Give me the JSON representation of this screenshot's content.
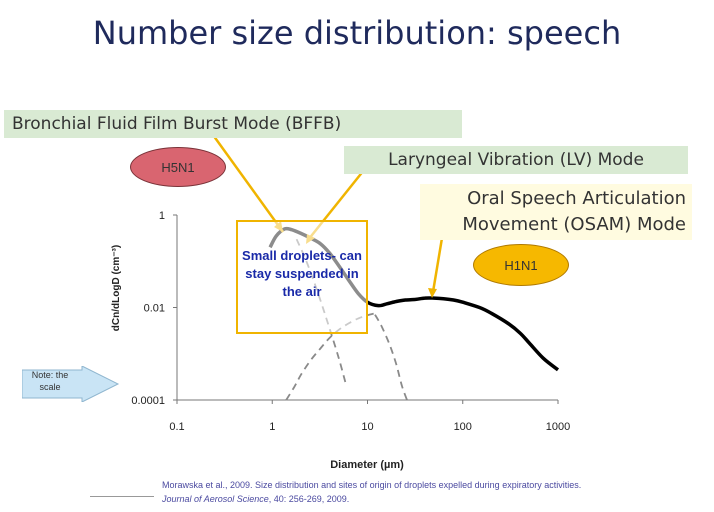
{
  "slide": {
    "title": "Number size distribution: speech"
  },
  "annotations": {
    "bffb": "Bronchial Fluid Film Burst Mode (BFFB)",
    "lv": "Laryngeal Vibration (LV) Mode",
    "osam_line1": "Oral Speech Articulation",
    "osam_line2": "Movement (OSAM) Mode",
    "h5n1": "H5N1",
    "h1n1": "H1N1",
    "note": "Note: the scale",
    "small_droplets": "Small droplets- can stay suspended in the air"
  },
  "citation": {
    "line1": "Morawska et al., 2009. Size distribution and sites of origin of droplets expelled during expiratory activities.",
    "journal": "Journal of Aerosol Science",
    "rest": ", 40: 256-269, 2009."
  },
  "colors": {
    "title": "#1f2a5c",
    "green_label_bg": "#d9ead3",
    "osam_bg": "#fffbe0",
    "h5n1": "#d96570",
    "h1n1": "#f6b800",
    "arrow": "#f0b400",
    "note_arrow": "#c9e4f5",
    "small_droplets_text": "#1a2aa8"
  },
  "chart_data": {
    "type": "line",
    "xlabel": "Diameter (µm)",
    "ylabel": "dCn/dLogD (cm⁻³)",
    "x_scale": "log",
    "y_scale": "log",
    "xlim": [
      0.1,
      1000
    ],
    "ylim": [
      0.0001,
      1
    ],
    "x_ticks": [
      "0.1",
      "1",
      "10",
      "100",
      "1000"
    ],
    "y_ticks": [
      "1",
      "0.01",
      "0.0001"
    ],
    "grid": false,
    "series": [
      {
        "style": "solid-total",
        "x": [
          0.95,
          1.1,
          1.35,
          1.6,
          2.0,
          2.5,
          3.2,
          4.0,
          5.0,
          6.3,
          8.0,
          10,
          13,
          16,
          20,
          25,
          32,
          40,
          50,
          63,
          80,
          100,
          150,
          200,
          300,
          400,
          500,
          700,
          1000
        ],
        "y": [
          0.2,
          0.35,
          0.5,
          0.48,
          0.4,
          0.32,
          0.24,
          0.15,
          0.08,
          0.04,
          0.02,
          0.013,
          0.011,
          0.012,
          0.0135,
          0.0145,
          0.015,
          0.016,
          0.016,
          0.0155,
          0.0145,
          0.013,
          0.01,
          0.0075,
          0.0045,
          0.0028,
          0.0017,
          0.0008,
          0.00045
        ]
      },
      {
        "style": "dashed-mode",
        "x": [
          1.4,
          1.7,
          2.0,
          2.5,
          3.2,
          4.0,
          5.0,
          6.3,
          8.0,
          10,
          12
        ],
        "y": [
          0.0001,
          0.00019,
          0.00035,
          0.0007,
          0.0013,
          0.0022,
          0.0033,
          0.0045,
          0.0058,
          0.0068,
          0.0075
        ]
      },
      {
        "style": "dashed-mode",
        "x": [
          1.8,
          2.2,
          2.7,
          3.3,
          4.0,
          5.0,
          6.0
        ],
        "y": [
          0.3,
          0.12,
          0.04,
          0.012,
          0.0035,
          0.0008,
          0.0002
        ]
      },
      {
        "style": "dashed-mode",
        "x": [
          12,
          14,
          17,
          20,
          23,
          26
        ],
        "y": [
          0.007,
          0.004,
          0.0016,
          0.0006,
          0.0002,
          0.0001
        ]
      }
    ]
  }
}
